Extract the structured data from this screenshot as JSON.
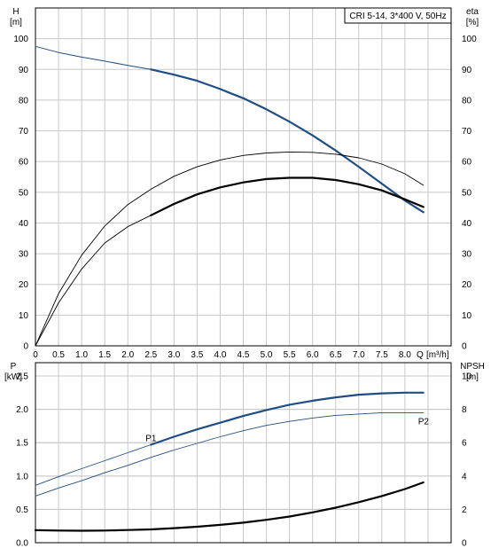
{
  "chart_data": [
    {
      "type": "line",
      "title": "CRI 5-14, 3*400 V, 50Hz",
      "xlabel": "Q [m³/h]",
      "xlabel_text": "Q",
      "xlabel_unit": "[m³/h]",
      "ylabel_left_text": "H",
      "ylabel_left_unit": "[m]",
      "ylabel_right_text": "eta",
      "ylabel_right_unit": "[%]",
      "xlim": [
        0,
        9.0
      ],
      "ylim": [
        0,
        110
      ],
      "ylim_right": [
        0,
        110
      ],
      "grid": true,
      "x_ticks": [
        "0",
        "0.5",
        "1.0",
        "1.5",
        "2.0",
        "2.5",
        "3.0",
        "3.5",
        "4.0",
        "4.5",
        "5.0",
        "5.5",
        "6.0",
        "6.5",
        "7.0",
        "7.5",
        "8.0"
      ],
      "y_ticks": [
        "0",
        "10",
        "20",
        "30",
        "40",
        "50",
        "60",
        "70",
        "80",
        "90",
        "100"
      ],
      "y_ticks_right": [
        "0",
        "10",
        "20",
        "30",
        "40",
        "50",
        "60",
        "70",
        "80",
        "90",
        "100"
      ],
      "series": [
        {
          "name": "",
          "color": "#1f4e85",
          "axis": "left",
          "x": [
            0,
            0.5,
            1.0,
            1.5,
            2.0,
            2.5
          ],
          "y": [
            97.5,
            95.5,
            94.0,
            92.7,
            91.3,
            90.0
          ],
          "width": 1
        },
        {
          "name": "",
          "color": "#1f4e85",
          "axis": "left",
          "x": [
            2.5,
            3.0,
            3.5,
            4.0,
            4.5,
            5.0,
            5.5,
            6.0,
            6.5,
            7.0,
            7.5,
            8.0,
            8.4
          ],
          "y": [
            90.0,
            88.3,
            86.3,
            83.6,
            80.6,
            77.0,
            73.0,
            68.5,
            63.6,
            58.3,
            52.8,
            47.3,
            43.5
          ],
          "width": 2.2
        },
        {
          "name": "",
          "color": "#000000",
          "axis": "right",
          "x": [
            0,
            0.5,
            1.0,
            1.5,
            2.0,
            2.5,
            3.0,
            3.5,
            4.0,
            4.5,
            5.0,
            5.5,
            6.0,
            6.5,
            7.0,
            7.5,
            8.0,
            8.4
          ],
          "y": [
            0,
            17.0,
            29.5,
            39.0,
            46.0,
            51.0,
            55.2,
            58.3,
            60.5,
            62.0,
            62.8,
            63.1,
            63.0,
            62.4,
            61.2,
            59.2,
            56.0,
            52.3
          ],
          "width": 0.9
        },
        {
          "name": "",
          "color": "#000000",
          "axis": "right",
          "x": [
            0,
            0.5,
            1.0,
            1.5,
            2.0,
            2.5
          ],
          "y": [
            0,
            14.0,
            25.0,
            33.5,
            38.8,
            42.5
          ],
          "width": 0.9
        },
        {
          "name": "",
          "color": "#000000",
          "axis": "right",
          "x": [
            2.5,
            3.0,
            3.5,
            4.0,
            4.5,
            5.0,
            5.5,
            6.0,
            6.5,
            7.0,
            7.5,
            8.0,
            8.4
          ],
          "y": [
            42.5,
            46.2,
            49.3,
            51.6,
            53.2,
            54.3,
            54.7,
            54.7,
            54.0,
            52.6,
            50.6,
            47.7,
            45.2
          ],
          "width": 2.2
        }
      ]
    },
    {
      "type": "line",
      "title": "",
      "xlabel": "",
      "ylabel_left_text": "P",
      "ylabel_left_unit": "[kW]",
      "ylabel_right_text": "NPSH",
      "ylabel_right_unit": "[m]",
      "xlim": [
        0,
        9.0
      ],
      "ylim": [
        0,
        2.7
      ],
      "ylim_right": [
        0,
        10.8
      ],
      "grid": true,
      "y_ticks": [
        "0.0",
        "0.5",
        "1.0",
        "1.5",
        "2.0",
        "2.5"
      ],
      "y_ticks_right": [
        "0",
        "2",
        "4",
        "6",
        "8",
        "10"
      ],
      "series": [
        {
          "name": "P1",
          "color": "#1f4e85",
          "axis": "left",
          "label_at_end": true,
          "x": [
            0,
            0.5,
            1.0,
            1.5,
            2.0,
            2.5
          ],
          "y": [
            0.86,
            0.99,
            1.11,
            1.23,
            1.35,
            1.47
          ],
          "width": 0.9
        },
        {
          "name": "",
          "color": "#1f4e85",
          "axis": "left",
          "x": [
            2.5,
            3.0,
            3.5,
            4.0,
            4.5,
            5.0,
            5.5,
            6.0,
            6.5,
            7.0,
            7.5,
            8.0,
            8.4
          ],
          "y": [
            1.47,
            1.59,
            1.7,
            1.8,
            1.9,
            1.99,
            2.07,
            2.13,
            2.18,
            2.22,
            2.24,
            2.25,
            2.25
          ],
          "width": 2.2
        },
        {
          "name": "P2",
          "color": "#1f4e85",
          "axis": "left",
          "label_at_end": true,
          "x": [
            0,
            0.5,
            1.0,
            1.5,
            2.0,
            2.5,
            3.0,
            3.5,
            4.0,
            4.5,
            5.0,
            5.5,
            6.0,
            6.5,
            7.0,
            7.5,
            8.0,
            8.4
          ],
          "y": [
            0.7,
            0.82,
            0.93,
            1.05,
            1.16,
            1.28,
            1.39,
            1.49,
            1.59,
            1.68,
            1.76,
            1.82,
            1.87,
            1.91,
            1.93,
            1.95,
            1.95,
            1.95
          ],
          "width": 0.9
        },
        {
          "name": "",
          "color": "#000000",
          "axis": "right",
          "x": [
            0,
            0.5,
            1.0,
            1.5,
            2.0,
            2.5,
            3.0,
            3.5,
            4.0,
            4.5,
            5.0,
            5.5,
            6.0,
            6.5,
            7.0,
            7.5,
            8.0,
            8.4
          ],
          "y": [
            0.75,
            0.73,
            0.72,
            0.73,
            0.76,
            0.8,
            0.87,
            0.96,
            1.07,
            1.2,
            1.37,
            1.57,
            1.82,
            2.1,
            2.43,
            2.8,
            3.22,
            3.62
          ],
          "width": 2.2
        }
      ]
    }
  ]
}
